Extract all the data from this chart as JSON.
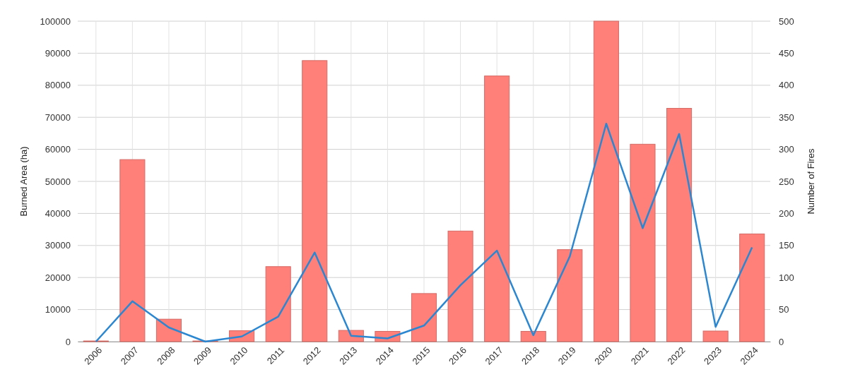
{
  "chart_data": {
    "type": "bar",
    "ylabel": "Burned Area (ha)",
    "y2label": "Number of Fires",
    "categories": [
      "2006",
      "2007",
      "2008",
      "2009",
      "2010",
      "2011",
      "2012",
      "2013",
      "2014",
      "2015",
      "2016",
      "2017",
      "2018",
      "2019",
      "2020",
      "2021",
      "2022",
      "2023",
      "2024"
    ],
    "series": [
      {
        "color": "#ff7f79",
        "values": [
          200,
          56800,
          7000,
          200,
          3400,
          23400,
          87700,
          3500,
          3200,
          15000,
          34500,
          82900,
          3200,
          28700,
          100000,
          61600,
          72800,
          3300,
          33600
        ]
      },
      {
        "type": "line",
        "axis": "y2",
        "color": "#2b87d1",
        "values": [
          0,
          63,
          22,
          0,
          8,
          39,
          139,
          9,
          5,
          25,
          88,
          142,
          10,
          133,
          340,
          177,
          324,
          23,
          147
        ]
      }
    ],
    "ylim": [
      0,
      100000
    ],
    "yticks": [
      0,
      10000,
      20000,
      30000,
      40000,
      50000,
      60000,
      70000,
      80000,
      90000,
      100000
    ],
    "y2lim": [
      0,
      500
    ],
    "y2ticks": [
      0,
      50,
      100,
      150,
      200,
      250,
      300,
      350,
      400,
      450,
      500
    ],
    "grid": true,
    "marker": "none",
    "line_style": "solid"
  }
}
